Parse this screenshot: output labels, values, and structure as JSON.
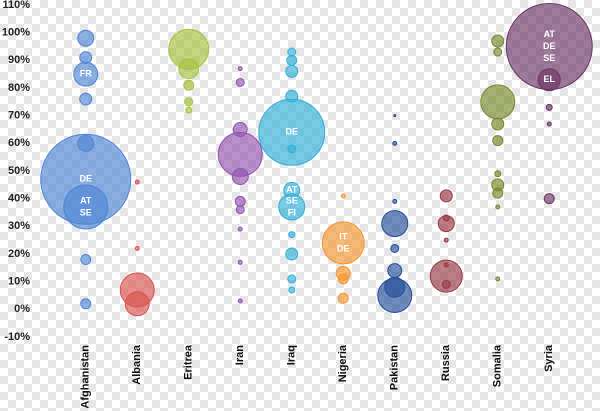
{
  "chart_data": {
    "type": "bubble",
    "categories": [
      "Afghanistan",
      "Albania",
      "Eritrea",
      "Iran",
      "Iraq",
      "Nigeria",
      "Pakistan",
      "Russia",
      "Somalia",
      "Syria"
    ],
    "ylim": [
      -10,
      110
    ],
    "yticks": [
      {
        "value": -10,
        "label": "-10%"
      },
      {
        "value": 0,
        "label": "0%"
      },
      {
        "value": 10,
        "label": "10%"
      },
      {
        "value": 20,
        "label": "20%"
      },
      {
        "value": 30,
        "label": "30%"
      },
      {
        "value": 40,
        "label": "40%"
      },
      {
        "value": 50,
        "label": "50%"
      },
      {
        "value": 60,
        "label": "60%"
      },
      {
        "value": 70,
        "label": "70%"
      },
      {
        "value": 80,
        "label": "80%"
      },
      {
        "value": 90,
        "label": "90%"
      },
      {
        "value": 100,
        "label": "100%"
      },
      {
        "value": 110,
        "label": "110%"
      }
    ],
    "grid": false,
    "series": [
      {
        "color": "#4f86d4",
        "values": [
          98,
          91,
          85,
          76,
          60,
          47,
          37,
          18,
          2
        ],
        "sizes": [
          64,
          36,
          144,
          36,
          64,
          2025,
          484,
          25,
          25
        ],
        "labels": [
          null,
          null,
          [
            "FR"
          ],
          null,
          null,
          [
            "DE"
          ],
          [
            "AT",
            "SE"
          ],
          null,
          null
        ]
      },
      {
        "color": "#d9534f",
        "values": [
          46,
          22,
          7,
          2
        ],
        "sizes": [
          4,
          4,
          289,
          144
        ],
        "labels": [
          null,
          null,
          null,
          null
        ]
      },
      {
        "color": "#a5c23c",
        "values": [
          94,
          87,
          81,
          75,
          72
        ],
        "sizes": [
          400,
          100,
          25,
          16,
          9
        ],
        "labels": [
          null,
          null,
          null,
          null,
          null
        ]
      },
      {
        "color": "#9353b0",
        "values": [
          87,
          82,
          65,
          56,
          48,
          39,
          36,
          29,
          17,
          3
        ],
        "sizes": [
          4,
          16,
          49,
          484,
          64,
          25,
          16,
          4,
          4,
          4
        ],
        "labels": [
          null,
          null,
          null,
          null,
          null,
          null,
          null,
          null,
          null,
          null
        ]
      },
      {
        "color": "#2fb0d8",
        "values": [
          93,
          90,
          86,
          77,
          64,
          58,
          43,
          37,
          27,
          20,
          11,
          7
        ],
        "sizes": [
          16,
          25,
          36,
          36,
          1089,
          16,
          64,
          169,
          9,
          36,
          16,
          9
        ],
        "labels": [
          null,
          null,
          null,
          null,
          [
            "DE"
          ],
          null,
          [
            "AT"
          ],
          [
            "SE",
            "FI"
          ],
          null,
          null,
          null,
          null
        ]
      },
      {
        "color": "#f4962e",
        "values": [
          41,
          24,
          13,
          11,
          4
        ],
        "sizes": [
          4,
          441,
          49,
          25,
          25
        ],
        "labels": [
          null,
          [
            "IT",
            "DE"
          ],
          null,
          null,
          null
        ]
      },
      {
        "color": "#234f99",
        "values": [
          70,
          60,
          39,
          31,
          22,
          14,
          8,
          5
        ],
        "sizes": [
          1,
          4,
          4,
          169,
          16,
          49,
          100,
          289
        ],
        "labels": [
          null,
          null,
          null,
          null,
          null,
          null,
          null,
          null
        ]
      },
      {
        "color": "#9a3a46",
        "values": [
          41,
          33,
          31,
          25,
          16,
          12,
          9
        ],
        "sizes": [
          36,
          9,
          64,
          4,
          4,
          256,
          16
        ],
        "labels": [
          null,
          null,
          null,
          null,
          null,
          null,
          null
        ]
      },
      {
        "color": "#76882a",
        "values": [
          97,
          93,
          75,
          67,
          61,
          49,
          45,
          42,
          37,
          11
        ],
        "sizes": [
          36,
          16,
          289,
          36,
          25,
          9,
          36,
          25,
          4,
          4
        ],
        "labels": [
          null,
          null,
          null,
          null,
          null,
          null,
          null,
          null,
          null,
          null
        ]
      },
      {
        "color": "#6b3466",
        "values": [
          95,
          83,
          73,
          67,
          40
        ],
        "sizes": [
          1849,
          121,
          9,
          4,
          25
        ],
        "labels": [
          [
            "AT",
            "DE",
            "SE"
          ],
          [
            "EL"
          ],
          null,
          null,
          null
        ]
      }
    ]
  }
}
